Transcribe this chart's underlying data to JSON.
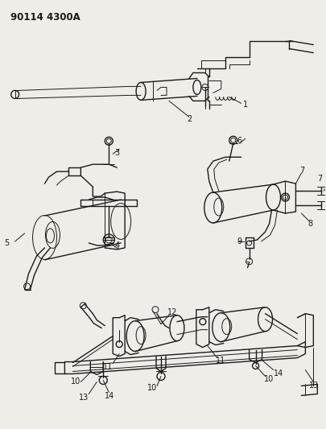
{
  "title": "90114 4300A",
  "bg_color": "#f0ede8",
  "line_color": "#1a1a1a",
  "fig_width": 4.05,
  "fig_height": 5.33,
  "dpi": 100
}
